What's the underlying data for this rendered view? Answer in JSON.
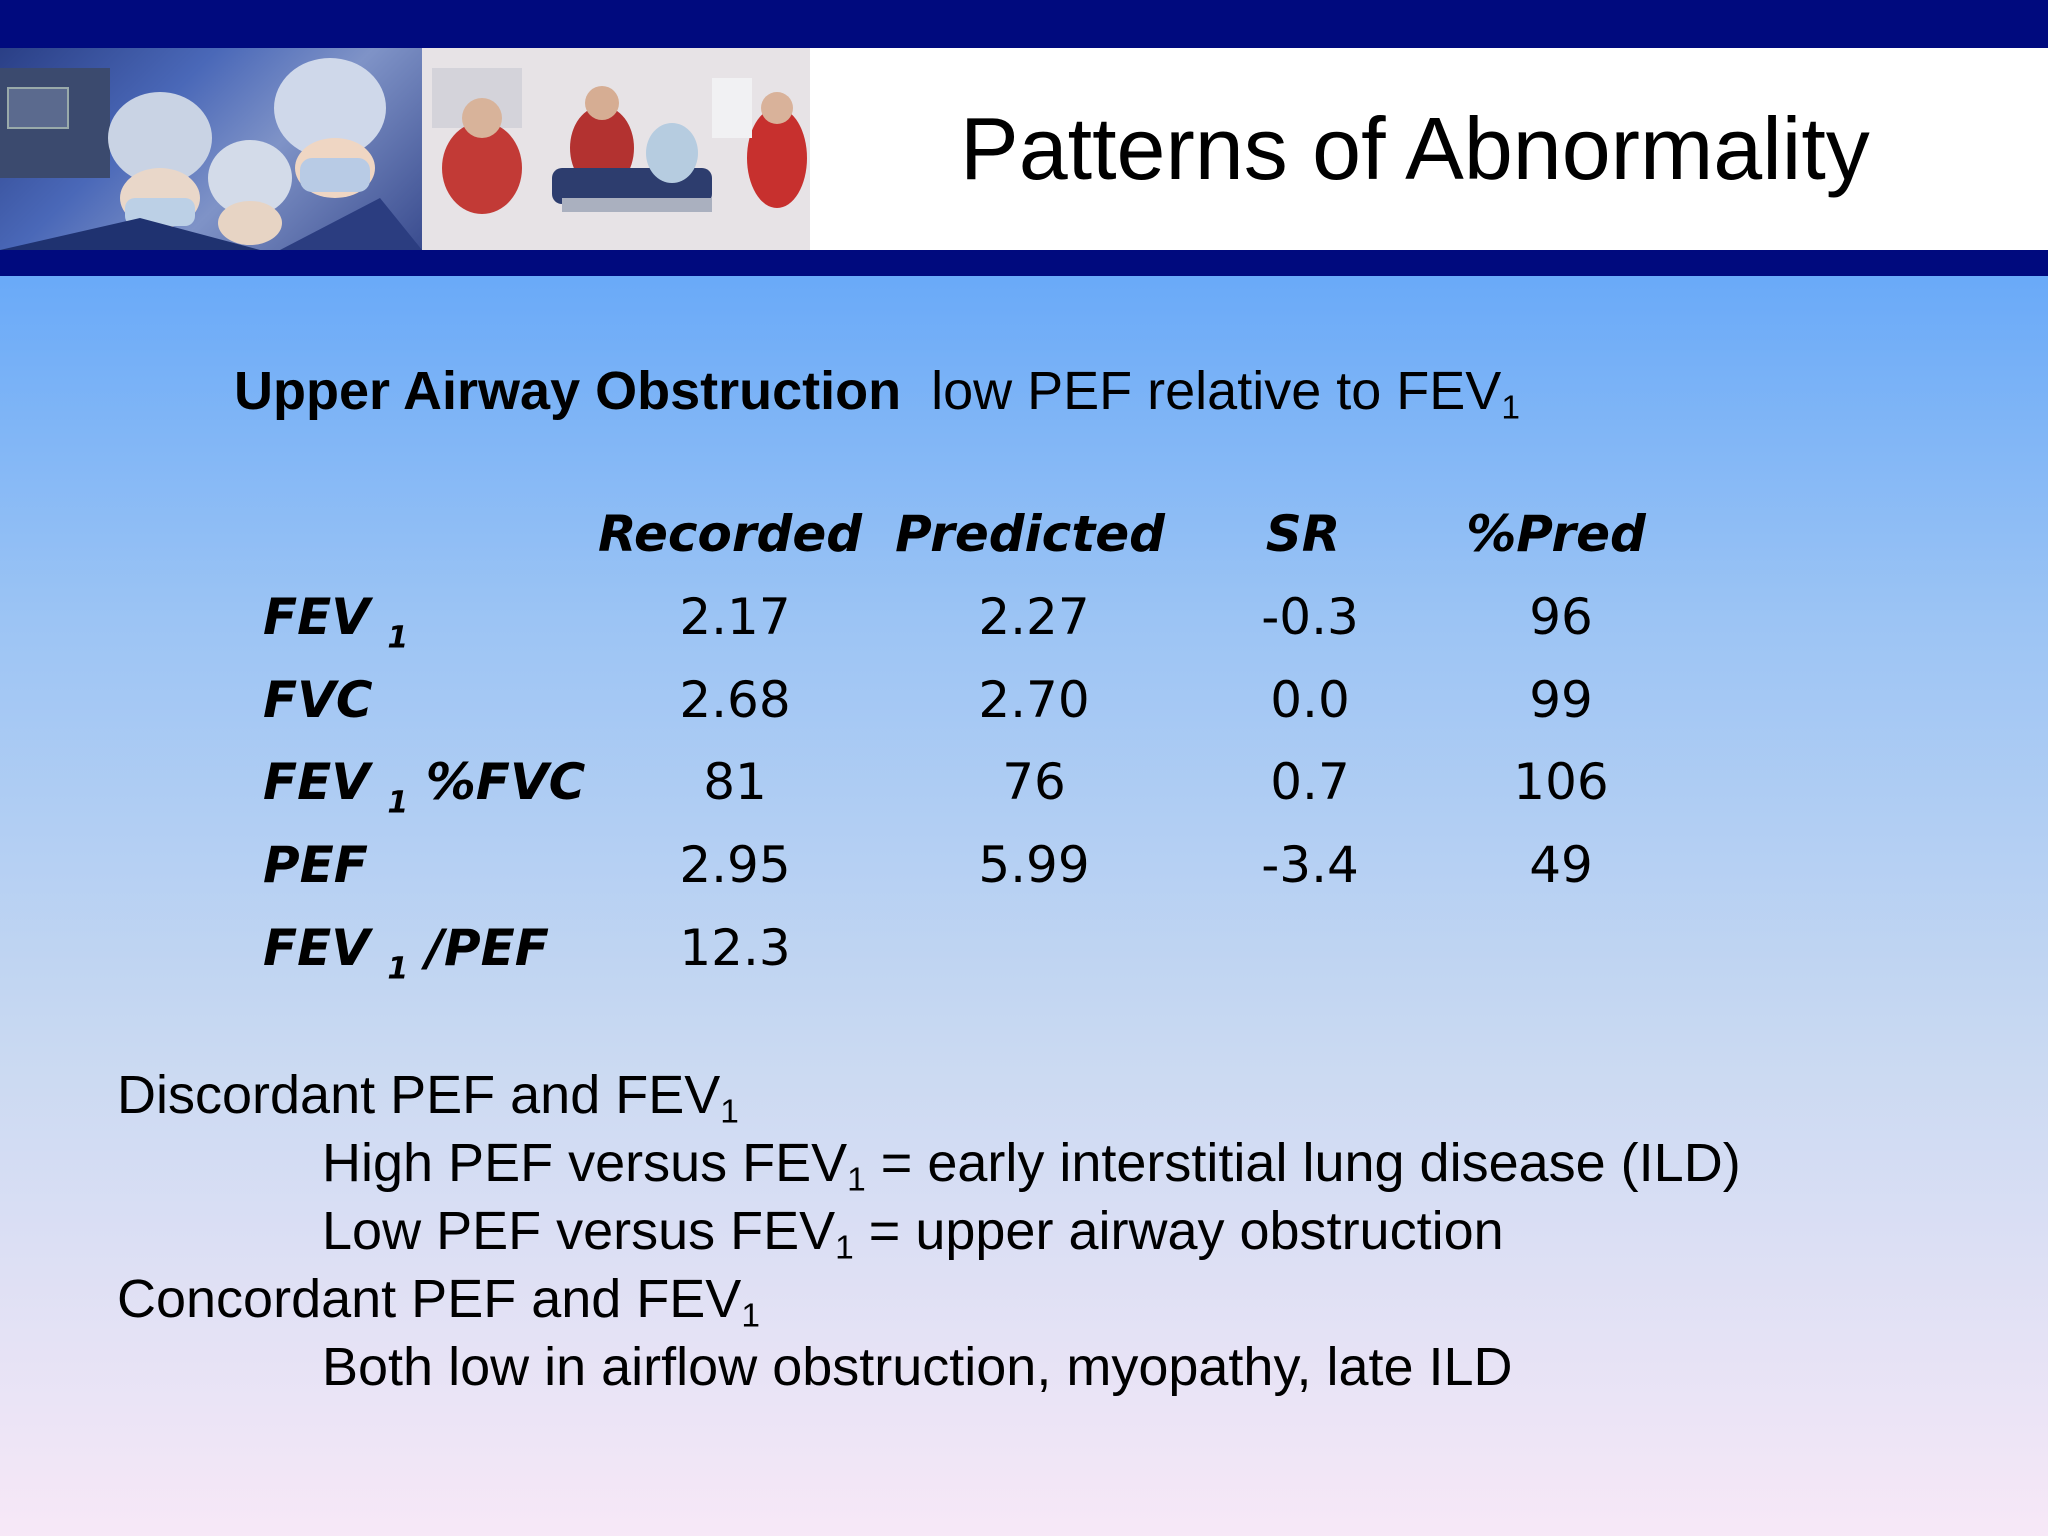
{
  "slide": {
    "title": "Patterns of Abnormality"
  },
  "subtitle": {
    "bold_part": "Upper Airway Obstruction",
    "normal_part": "low PEF relative to FEV",
    "subscript": "1"
  },
  "table": {
    "headers": [
      "Recorded",
      "Predicted",
      "SR",
      "%Pred"
    ],
    "rows": [
      {
        "label_main": "FEV ",
        "label_sub": "1",
        "label_tail": "",
        "values": [
          "2.17",
          "2.27",
          "-0.3",
          "96"
        ]
      },
      {
        "label_main": "FVC",
        "label_sub": "",
        "label_tail": "",
        "values": [
          "2.68",
          "2.70",
          "0.0",
          "99"
        ]
      },
      {
        "label_main": "FEV ",
        "label_sub": "1",
        "label_tail": " %FVC",
        "values": [
          "81",
          "76",
          "0.7",
          "106"
        ]
      },
      {
        "label_main": "PEF",
        "label_sub": "",
        "label_tail": "",
        "values": [
          "2.95",
          "5.99",
          "-3.4",
          "49"
        ]
      },
      {
        "label_main": "FEV ",
        "label_sub": "1",
        "label_tail": " /PEF",
        "values": [
          "12.3",
          "",
          "",
          ""
        ]
      }
    ]
  },
  "notes": [
    {
      "pre": "Discordant PEF and FEV",
      "sub": "1",
      "post": ""
    },
    {
      "pre": "High PEF versus FEV",
      "sub": "1",
      "post": " = early interstitial lung disease (ILD)"
    },
    {
      "pre": "Low PEF versus  FEV",
      "sub": "1",
      "post": " = upper airway obstruction"
    },
    {
      "pre": "Concordant PEF and FEV",
      "sub": "1",
      "post": ""
    },
    {
      "pre": "Both low in airflow obstruction, myopathy, late ILD",
      "sub": "",
      "post": ""
    }
  ],
  "images": {
    "left_photo": "surgeons-photo",
    "right_photo": "paramedics-photo"
  }
}
